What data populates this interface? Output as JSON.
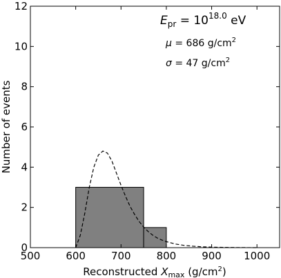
{
  "chart_data": {
    "type": "bar",
    "title": "",
    "xlabel": "Reconstructed ",
    "xlabel_sym": "X",
    "xlabel_sub": "max",
    "xlabel_unit": " (g/cm",
    "xlabel_unit_sup": "2",
    "xlabel_close": ")",
    "ylabel": "Number of events",
    "xlim": [
      500,
      1050
    ],
    "ylim": [
      0,
      12
    ],
    "xticks": [
      500,
      600,
      700,
      800,
      900,
      1000
    ],
    "yticks": [
      0,
      2,
      4,
      6,
      8,
      10,
      12
    ],
    "bins": [
      {
        "x0": 600,
        "x1": 750,
        "count": 3
      },
      {
        "x0": 750,
        "x1": 800,
        "count": 1
      }
    ],
    "bar_color": "#808080",
    "fit_curve": {
      "style": "dashed",
      "x": [
        600,
        610,
        620,
        630,
        640,
        650,
        660,
        670,
        680,
        690,
        700,
        710,
        720,
        730,
        740,
        750,
        760,
        770,
        780,
        790,
        800,
        820,
        840,
        860,
        880,
        900,
        930,
        960,
        1000
      ],
      "y": [
        0.0,
        0.6,
        1.7,
        3.0,
        4.0,
        4.6,
        4.8,
        4.7,
        4.3,
        3.7,
        3.1,
        2.55,
        2.05,
        1.65,
        1.3,
        1.02,
        0.8,
        0.62,
        0.48,
        0.38,
        0.3,
        0.18,
        0.11,
        0.07,
        0.04,
        0.025,
        0.012,
        0.005,
        0.0
      ]
    },
    "annotations": {
      "energy_sym": "E",
      "energy_sub": "pr",
      "energy_eq": " = 10",
      "energy_exp": "18.0",
      "energy_unit": " eV",
      "mu_sym": "μ",
      "mu_text": " = 686 g/cm",
      "mu_sup": "2",
      "sigma_sym": "σ",
      "sigma_text": " = 47 g/cm",
      "sigma_sup": "2"
    }
  }
}
